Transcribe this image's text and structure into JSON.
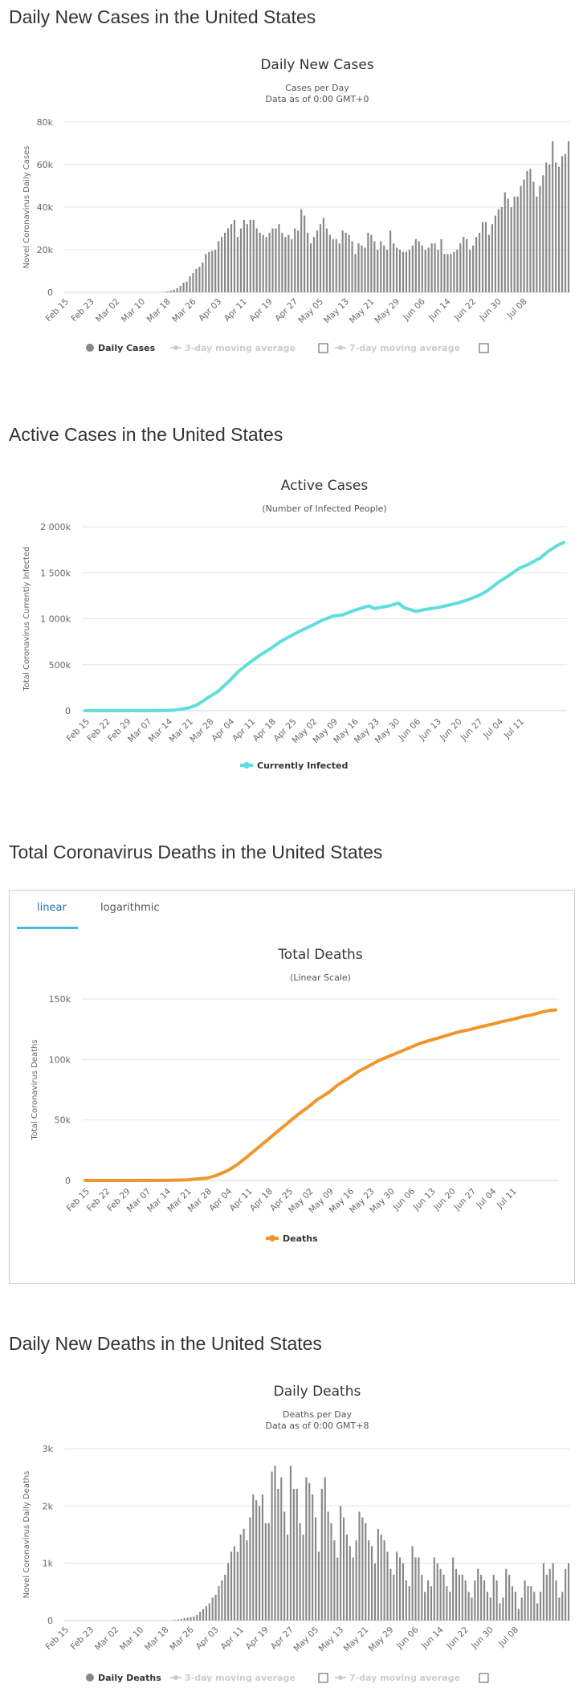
{
  "sections": {
    "daily_cases": "Daily New Cases in the United States",
    "active": "Active Cases in the United States",
    "total_deaths": "Total Coronavirus Deaths in the United States",
    "daily_deaths": "Daily New Deaths in the United States"
  },
  "tabs": {
    "linear": "linear",
    "log": "logarithmic"
  },
  "colors": {
    "bars": "#888888",
    "active_line": "#5fdedc",
    "deaths_line": "#f0962a",
    "grid": "#e6e6e6",
    "tab_accent": "#4fb4e6"
  },
  "chart_data": [
    {
      "id": "daily_cases",
      "type": "bar",
      "title": "Daily New Cases",
      "subtitle": "Cases per Day",
      "subtitle2": "Data as of 0:00 GMT+0",
      "ylabel": "Novel Coronavirus Daily Cases",
      "xlabel": "",
      "ylim": [
        0,
        80000
      ],
      "yticks": [
        "0",
        "20k",
        "40k",
        "60k",
        "80k"
      ],
      "x_labels": [
        "Feb 15",
        "Feb 23",
        "Mar 02",
        "Mar 10",
        "Mar 18",
        "Mar 26",
        "Apr 03",
        "Apr 11",
        "Apr 19",
        "Apr 27",
        "May 05",
        "May 13",
        "May 21",
        "May 29",
        "Jun 06",
        "Jun 14",
        "Jun 22",
        "Jun 30",
        "Jul 08"
      ],
      "label_every": 8,
      "legend": [
        "Daily Cases",
        "3-day moving average",
        "7-day moving average"
      ],
      "values": [
        0,
        0,
        0,
        0,
        0,
        0,
        0,
        0,
        0,
        0,
        0,
        0,
        0,
        0,
        0,
        0,
        0,
        0,
        0,
        0,
        0,
        0,
        0,
        0,
        0,
        0,
        0,
        0,
        0,
        0,
        100,
        200,
        400,
        800,
        1200,
        2000,
        3000,
        4500,
        5000,
        7500,
        9000,
        11000,
        12000,
        14000,
        18000,
        19000,
        19500,
        20000,
        24000,
        26000,
        28000,
        30000,
        32000,
        34000,
        26000,
        30000,
        34000,
        32000,
        34000,
        34000,
        30000,
        28000,
        27000,
        26000,
        28000,
        30000,
        30000,
        32000,
        28000,
        26000,
        27000,
        25000,
        30000,
        29000,
        39000,
        36000,
        28000,
        23000,
        26000,
        29000,
        32000,
        35000,
        30000,
        27000,
        25000,
        25000,
        23000,
        29000,
        28000,
        27000,
        24000,
        18000,
        23000,
        22000,
        21000,
        28000,
        27000,
        24000,
        20000,
        24000,
        22000,
        20000,
        29000,
        23000,
        21000,
        20000,
        19000,
        19000,
        20000,
        22000,
        25000,
        24000,
        22000,
        20000,
        21000,
        23000,
        23000,
        20000,
        25000,
        18000,
        18000,
        18000,
        19000,
        20000,
        23000,
        26000,
        25000,
        20000,
        22000,
        26000,
        28000,
        33000,
        33000,
        27000,
        32000,
        36000,
        39000,
        40000,
        47000,
        44000,
        40000,
        45000,
        45000,
        50000,
        53000,
        57000,
        58000,
        52000,
        45000,
        50000,
        55000,
        61000,
        60000,
        71000,
        61000,
        59000,
        64000,
        65000,
        71000
      ]
    },
    {
      "id": "active",
      "type": "line",
      "title": "Active Cases",
      "subtitle": "(Number of Infected People)",
      "ylabel": "Total Coronavirus Currently Infected",
      "xlabel": "",
      "ylim": [
        0,
        2000000
      ],
      "yticks": [
        "0",
        "500k",
        "1 000k",
        "1 500k",
        "2 000k"
      ],
      "x_labels": [
        "Feb 15",
        "Feb 22",
        "Feb 29",
        "Mar 07",
        "Mar 14",
        "Mar 21",
        "Mar 28",
        "Apr 04",
        "Apr 11",
        "Apr 18",
        "Apr 25",
        "May 02",
        "May 09",
        "May 16",
        "May 23",
        "May 30",
        "Jun 06",
        "Jun 13",
        "Jun 20",
        "Jun 27",
        "Jul 04",
        "Jul 11"
      ],
      "legend": [
        "Currently Infected"
      ],
      "series_name": "Currently Infected",
      "points": [
        [
          0,
          0
        ],
        [
          21,
          0
        ],
        [
          28,
          2000
        ],
        [
          30,
          6000
        ],
        [
          32,
          15000
        ],
        [
          35,
          30000
        ],
        [
          38,
          65000
        ],
        [
          42,
          150000
        ],
        [
          45,
          210000
        ],
        [
          49,
          330000
        ],
        [
          52,
          430000
        ],
        [
          56,
          530000
        ],
        [
          59,
          600000
        ],
        [
          63,
          680000
        ],
        [
          66,
          750000
        ],
        [
          70,
          820000
        ],
        [
          73,
          870000
        ],
        [
          77,
          930000
        ],
        [
          80,
          980000
        ],
        [
          84,
          1030000
        ],
        [
          87,
          1040000
        ],
        [
          91,
          1090000
        ],
        [
          94,
          1120000
        ],
        [
          96,
          1140000
        ],
        [
          98,
          1110000
        ],
        [
          101,
          1130000
        ],
        [
          103,
          1140000
        ],
        [
          106,
          1170000
        ],
        [
          108,
          1120000
        ],
        [
          112,
          1080000
        ],
        [
          115,
          1100000
        ],
        [
          119,
          1120000
        ],
        [
          122,
          1140000
        ],
        [
          126,
          1170000
        ],
        [
          129,
          1200000
        ],
        [
          133,
          1250000
        ],
        [
          136,
          1300000
        ],
        [
          140,
          1400000
        ],
        [
          143,
          1460000
        ],
        [
          147,
          1550000
        ],
        [
          150,
          1590000
        ],
        [
          154,
          1660000
        ],
        [
          157,
          1740000
        ],
        [
          160,
          1800000
        ],
        [
          162,
          1830000
        ]
      ]
    },
    {
      "id": "total_deaths",
      "type": "line",
      "title": "Total Deaths",
      "subtitle": "(Linear Scale)",
      "ylabel": "Total Coronavirus Deaths",
      "xlabel": "",
      "ylim": [
        0,
        150000
      ],
      "yticks": [
        "0",
        "50k",
        "100k",
        "150k"
      ],
      "x_labels": [
        "Feb 15",
        "Feb 22",
        "Feb 29",
        "Mar 07",
        "Mar 14",
        "Mar 21",
        "Mar 28",
        "Apr 04",
        "Apr 11",
        "Apr 18",
        "Apr 25",
        "May 02",
        "May 09",
        "May 16",
        "May 23",
        "May 30",
        "Jun 06",
        "Jun 13",
        "Jun 20",
        "Jun 27",
        "Jul 04",
        "Jul 11"
      ],
      "legend": [
        "Deaths"
      ],
      "series_name": "Deaths",
      "points": [
        [
          0,
          0
        ],
        [
          28,
          50
        ],
        [
          35,
          400
        ],
        [
          42,
          2000
        ],
        [
          45,
          4000
        ],
        [
          49,
          8000
        ],
        [
          52,
          12500
        ],
        [
          56,
          20000
        ],
        [
          59,
          26000
        ],
        [
          63,
          34000
        ],
        [
          66,
          40000
        ],
        [
          70,
          48000
        ],
        [
          73,
          54000
        ],
        [
          77,
          61000
        ],
        [
          80,
          67000
        ],
        [
          84,
          73000
        ],
        [
          87,
          79000
        ],
        [
          91,
          85000
        ],
        [
          94,
          90000
        ],
        [
          98,
          95000
        ],
        [
          101,
          99000
        ],
        [
          105,
          103000
        ],
        [
          108,
          106000
        ],
        [
          112,
          110000
        ],
        [
          115,
          113000
        ],
        [
          119,
          116000
        ],
        [
          122,
          118000
        ],
        [
          126,
          121000
        ],
        [
          129,
          123000
        ],
        [
          133,
          125000
        ],
        [
          136,
          127000
        ],
        [
          140,
          129000
        ],
        [
          143,
          131000
        ],
        [
          147,
          133000
        ],
        [
          150,
          135000
        ],
        [
          154,
          137000
        ],
        [
          157,
          139000
        ],
        [
          160,
          140500
        ],
        [
          162,
          141000
        ]
      ]
    },
    {
      "id": "daily_deaths",
      "type": "bar",
      "title": "Daily Deaths",
      "subtitle": "Deaths per Day",
      "subtitle2": "Data as of 0:00 GMT+8",
      "ylabel": "Novel Coronavirus Daily Deaths",
      "xlabel": "",
      "ylim": [
        0,
        3000
      ],
      "yticks": [
        "0",
        "1k",
        "2k",
        "3k"
      ],
      "x_labels": [
        "Feb 15",
        "Feb 23",
        "Mar 02",
        "Mar 10",
        "Mar 18",
        "Mar 26",
        "Apr 03",
        "Apr 11",
        "Apr 19",
        "Apr 27",
        "May 05",
        "May 13",
        "May 21",
        "May 29",
        "Jun 06",
        "Jun 14",
        "Jun 22",
        "Jun 30",
        "Jul 08"
      ],
      "label_every": 8,
      "legend": [
        "Daily Deaths",
        "3-day moving average",
        "7-day moving average"
      ],
      "values": [
        0,
        0,
        0,
        0,
        0,
        0,
        0,
        0,
        0,
        0,
        0,
        0,
        0,
        0,
        0,
        0,
        0,
        0,
        0,
        0,
        0,
        0,
        0,
        0,
        0,
        0,
        0,
        0,
        0,
        0,
        0,
        0,
        0,
        0,
        5,
        10,
        20,
        30,
        40,
        50,
        60,
        70,
        100,
        150,
        200,
        250,
        300,
        400,
        450,
        600,
        700,
        800,
        1000,
        1200,
        1300,
        1200,
        1500,
        1600,
        1400,
        1800,
        2200,
        2100,
        2000,
        2200,
        1700,
        1700,
        2600,
        2700,
        2300,
        2500,
        1900,
        1500,
        2700,
        2300,
        2300,
        1700,
        1500,
        2500,
        2400,
        2200,
        1800,
        1200,
        2300,
        2500,
        1900,
        1700,
        1400,
        1100,
        2000,
        1800,
        1500,
        1300,
        1100,
        1400,
        1900,
        1800,
        1700,
        1400,
        1300,
        1000,
        1600,
        1500,
        1400,
        1200,
        900,
        800,
        1200,
        1100,
        1000,
        700,
        600,
        1300,
        1100,
        1100,
        800,
        500,
        700,
        600,
        1100,
        1000,
        900,
        800,
        600,
        500,
        1100,
        900,
        800,
        800,
        700,
        500,
        400,
        700,
        900,
        800,
        700,
        500,
        400,
        800,
        700,
        300,
        400,
        900,
        800,
        600,
        500,
        200,
        400,
        700,
        600,
        600,
        500,
        300,
        500,
        1000,
        800,
        900,
        1000,
        700,
        400,
        500,
        900,
        1000
      ]
    }
  ]
}
